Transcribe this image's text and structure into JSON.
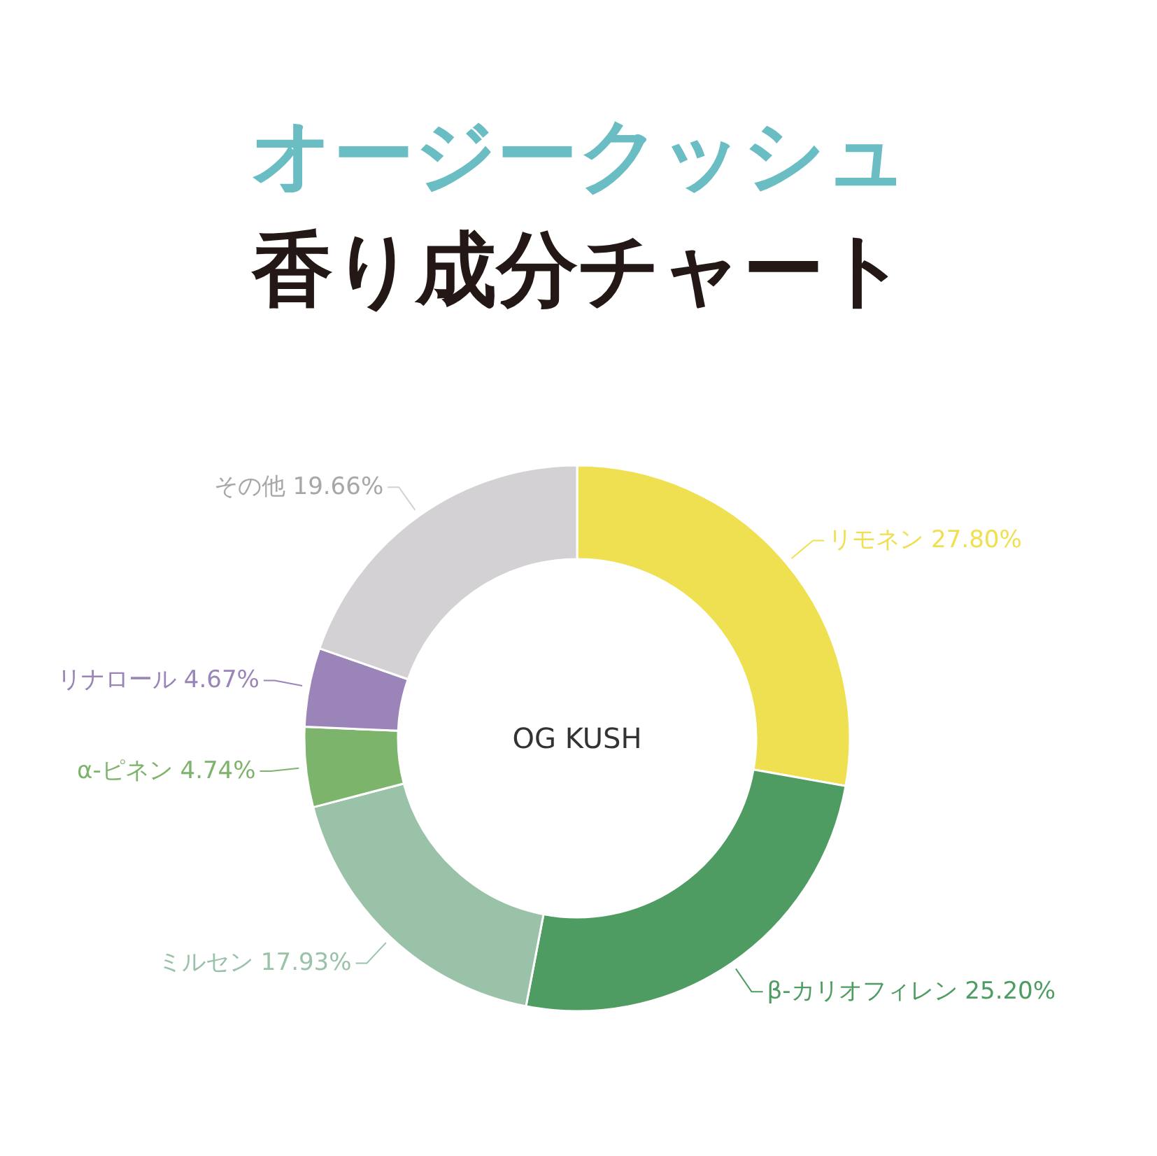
{
  "chart_data": {
    "type": "donut",
    "title": "オージークッシュ",
    "subtitle": "香り成分チャート",
    "categories": [
      "リモネン",
      "β-カリオフィレン",
      "ミルセン",
      "α-ピネン",
      "リナロール",
      "その他"
    ],
    "values": [
      27.8,
      25.2,
      17.93,
      4.74,
      4.67,
      19.66
    ],
    "colors": [
      "#efe052",
      "#4f9c62",
      "#9ac2a8",
      "#7db46c",
      "#9b84b8",
      "#d3d1d3"
    ],
    "value_labels": [
      "27.80%",
      "25.20%",
      "17.93%",
      "4.74%",
      "4.67%",
      "19.66%"
    ],
    "annotations": [
      "OG KUSH"
    ]
  }
}
